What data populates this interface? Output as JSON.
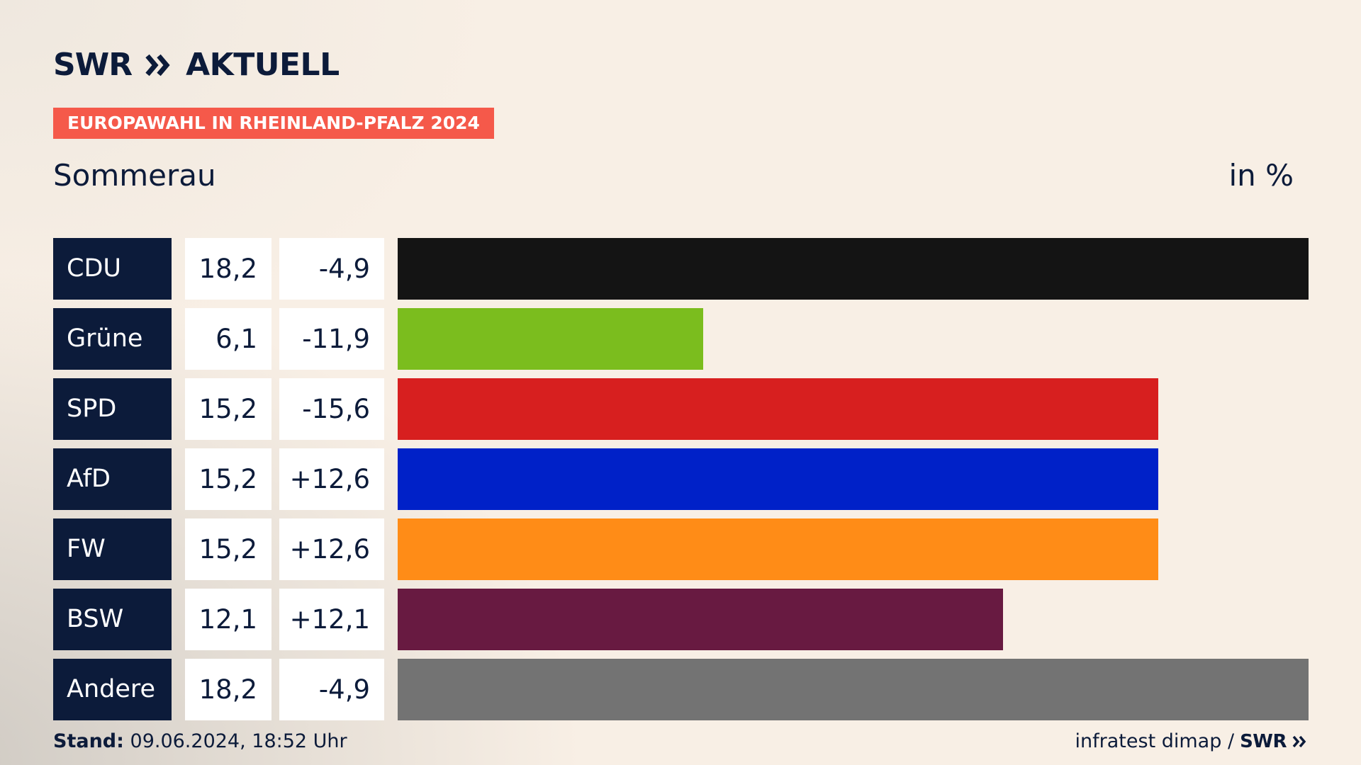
{
  "header": {
    "logo_swr": "SWR",
    "logo_aktuell": "AKTUELL",
    "badge": "EUROPAWAHL IN RHEINLAND-PFALZ 2024",
    "location": "Sommerau",
    "unit": "in %"
  },
  "footer": {
    "stand_label": "Stand:",
    "stand_value": "09.06.2024, 18:52 Uhr",
    "source": "infratest dimap /",
    "source_logo": "SWR"
  },
  "colors": {
    "navy": "#0c1b3a",
    "badge": "#f5594a"
  },
  "chart_data": {
    "type": "bar",
    "categories": [
      "CDU",
      "Grüne",
      "SPD",
      "AfD",
      "FW",
      "BSW",
      "Andere"
    ],
    "values": [
      18.2,
      6.1,
      15.2,
      15.2,
      15.2,
      12.1,
      18.2
    ],
    "value_labels": [
      "18,2",
      "6,1",
      "15,2",
      "15,2",
      "15,2",
      "12,1",
      "18,2"
    ],
    "diff_labels": [
      "-4,9",
      "-11,9",
      "-15,6",
      "+12,6",
      "+12,6",
      "+12,1",
      "-4,9"
    ],
    "colors": [
      "#141414",
      "#7bbd1e",
      "#d71f1f",
      "#0021c8",
      "#ff8c17",
      "#681a41",
      "#737373"
    ],
    "xlim": [
      0,
      18.2
    ],
    "grid": false,
    "legend": "none"
  }
}
